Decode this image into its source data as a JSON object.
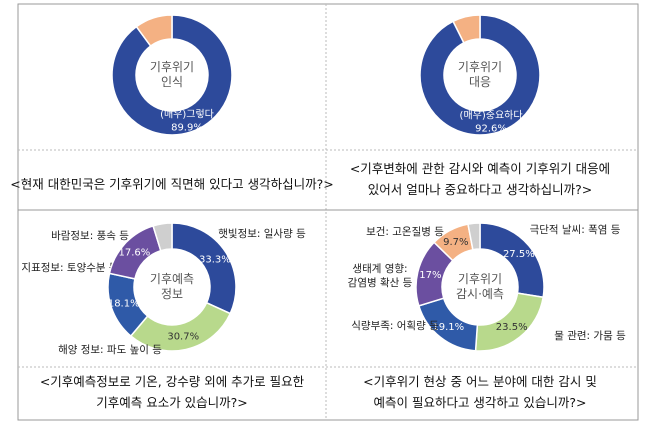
{
  "chart_data": [
    {
      "type": "donut",
      "center_label": [
        "기후위기",
        "인식"
      ],
      "categories": [
        "(매우)그렇다",
        null
      ],
      "values": [
        89.9,
        10.1
      ],
      "value_labels": [
        "89.9%",
        null
      ],
      "colors": [
        "#2d4a9b",
        "#f4b183"
      ]
    },
    {
      "type": "donut",
      "center_label": [
        "기후위기",
        "대응"
      ],
      "categories": [
        "(매우)중요하다",
        null
      ],
      "values": [
        92.6,
        7.4
      ],
      "value_labels": [
        "92.6%",
        null
      ],
      "colors": [
        "#2d4a9b",
        "#f4b183"
      ]
    },
    {
      "type": "donut",
      "center_label": [
        "기후예측",
        "정보"
      ],
      "categories": [
        "햇빛정보: 일사량 등",
        "해양 정보: 파도 높이 등",
        "지표정보: 토양수분 등",
        "바람정보: 풍속 등",
        null
      ],
      "values": [
        33.3,
        30.7,
        18.1,
        17.6,
        5
      ],
      "value_labels": [
        "33.3%",
        "30.7%",
        "18.1%",
        "17.6%",
        null
      ],
      "colors": [
        "#2d4a9b",
        "#b8d98c",
        "#2f5aa8",
        "#6b4fa0",
        "#cfcfcf"
      ]
    },
    {
      "type": "donut",
      "center_label": [
        "기후위기",
        "감시·예측"
      ],
      "categories": [
        "극단적 날씨: 폭염 등",
        "물 관련: 가뭄 등",
        "식량부족: 어획량 등",
        "생태계 영향:\n감염병 확산 등",
        "보건: 고온질병 등",
        null
      ],
      "values": [
        27.5,
        23.5,
        19.1,
        17,
        9.7,
        3
      ],
      "value_labels": [
        "27.5%",
        "23.5%",
        "19.1%",
        "17%",
        "9.7%",
        null
      ],
      "colors": [
        "#2d4a9b",
        "#b8d98c",
        "#2f5aa8",
        "#6b4fa0",
        "#f4b183",
        "#cfcfcf"
      ]
    }
  ],
  "questions": [
    [
      "<현재 대한민국은 기후위기에 직면해 있다고 생각하십니까?>"
    ],
    [
      "<기후변화에 관한 감시와 예측이 기후위기 대응에",
      "있어서 얼마나 중요하다고 생각하십니까?>"
    ],
    [
      "<기후예측정보로 기온, 강수량 외에 추가로 필요한",
      "기후예측 요소가 있습니까?>"
    ],
    [
      "<기후위기 현상 중 어느 분야에 대한 감시 및",
      "예측이 필요하다고 생각하고 있습니까?>"
    ]
  ]
}
